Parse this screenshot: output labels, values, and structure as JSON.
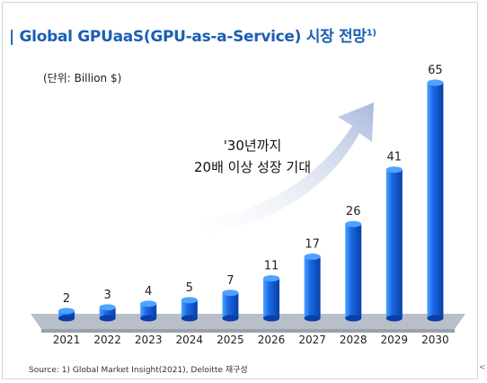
{
  "header": {
    "title": "| Global GPUaaS(GPU-as-a-Service) 시장 전망",
    "title_note": "1)"
  },
  "unit_label": "(단위: Billion $)",
  "callout": {
    "line1": "'30년까지",
    "line2": "20배 이상 성장 기대"
  },
  "source": "Source: 1) Global Market Insight(2021), Deloitte 재구성",
  "edge_mark": "<",
  "colors": {
    "title": "#1a5fb4",
    "bar_light": "#4da3ff",
    "bar_mid": "#1a6ae6",
    "bar_dark": "#0a3fa8",
    "arrow": "#aab9dc",
    "platform": "#b9bfc9"
  },
  "chart_data": {
    "type": "bar",
    "categories": [
      "2021",
      "2022",
      "2023",
      "2024",
      "2025",
      "2026",
      "2027",
      "2028",
      "2029",
      "2030"
    ],
    "values": [
      2,
      3,
      4,
      5,
      7,
      11,
      17,
      26,
      41,
      65
    ],
    "ylabel": "(단위: Billion $)",
    "ylim": [
      0,
      65
    ],
    "grid": false,
    "annotations": [
      "'30년까지",
      "20배 이상 성장 기대"
    ]
  }
}
